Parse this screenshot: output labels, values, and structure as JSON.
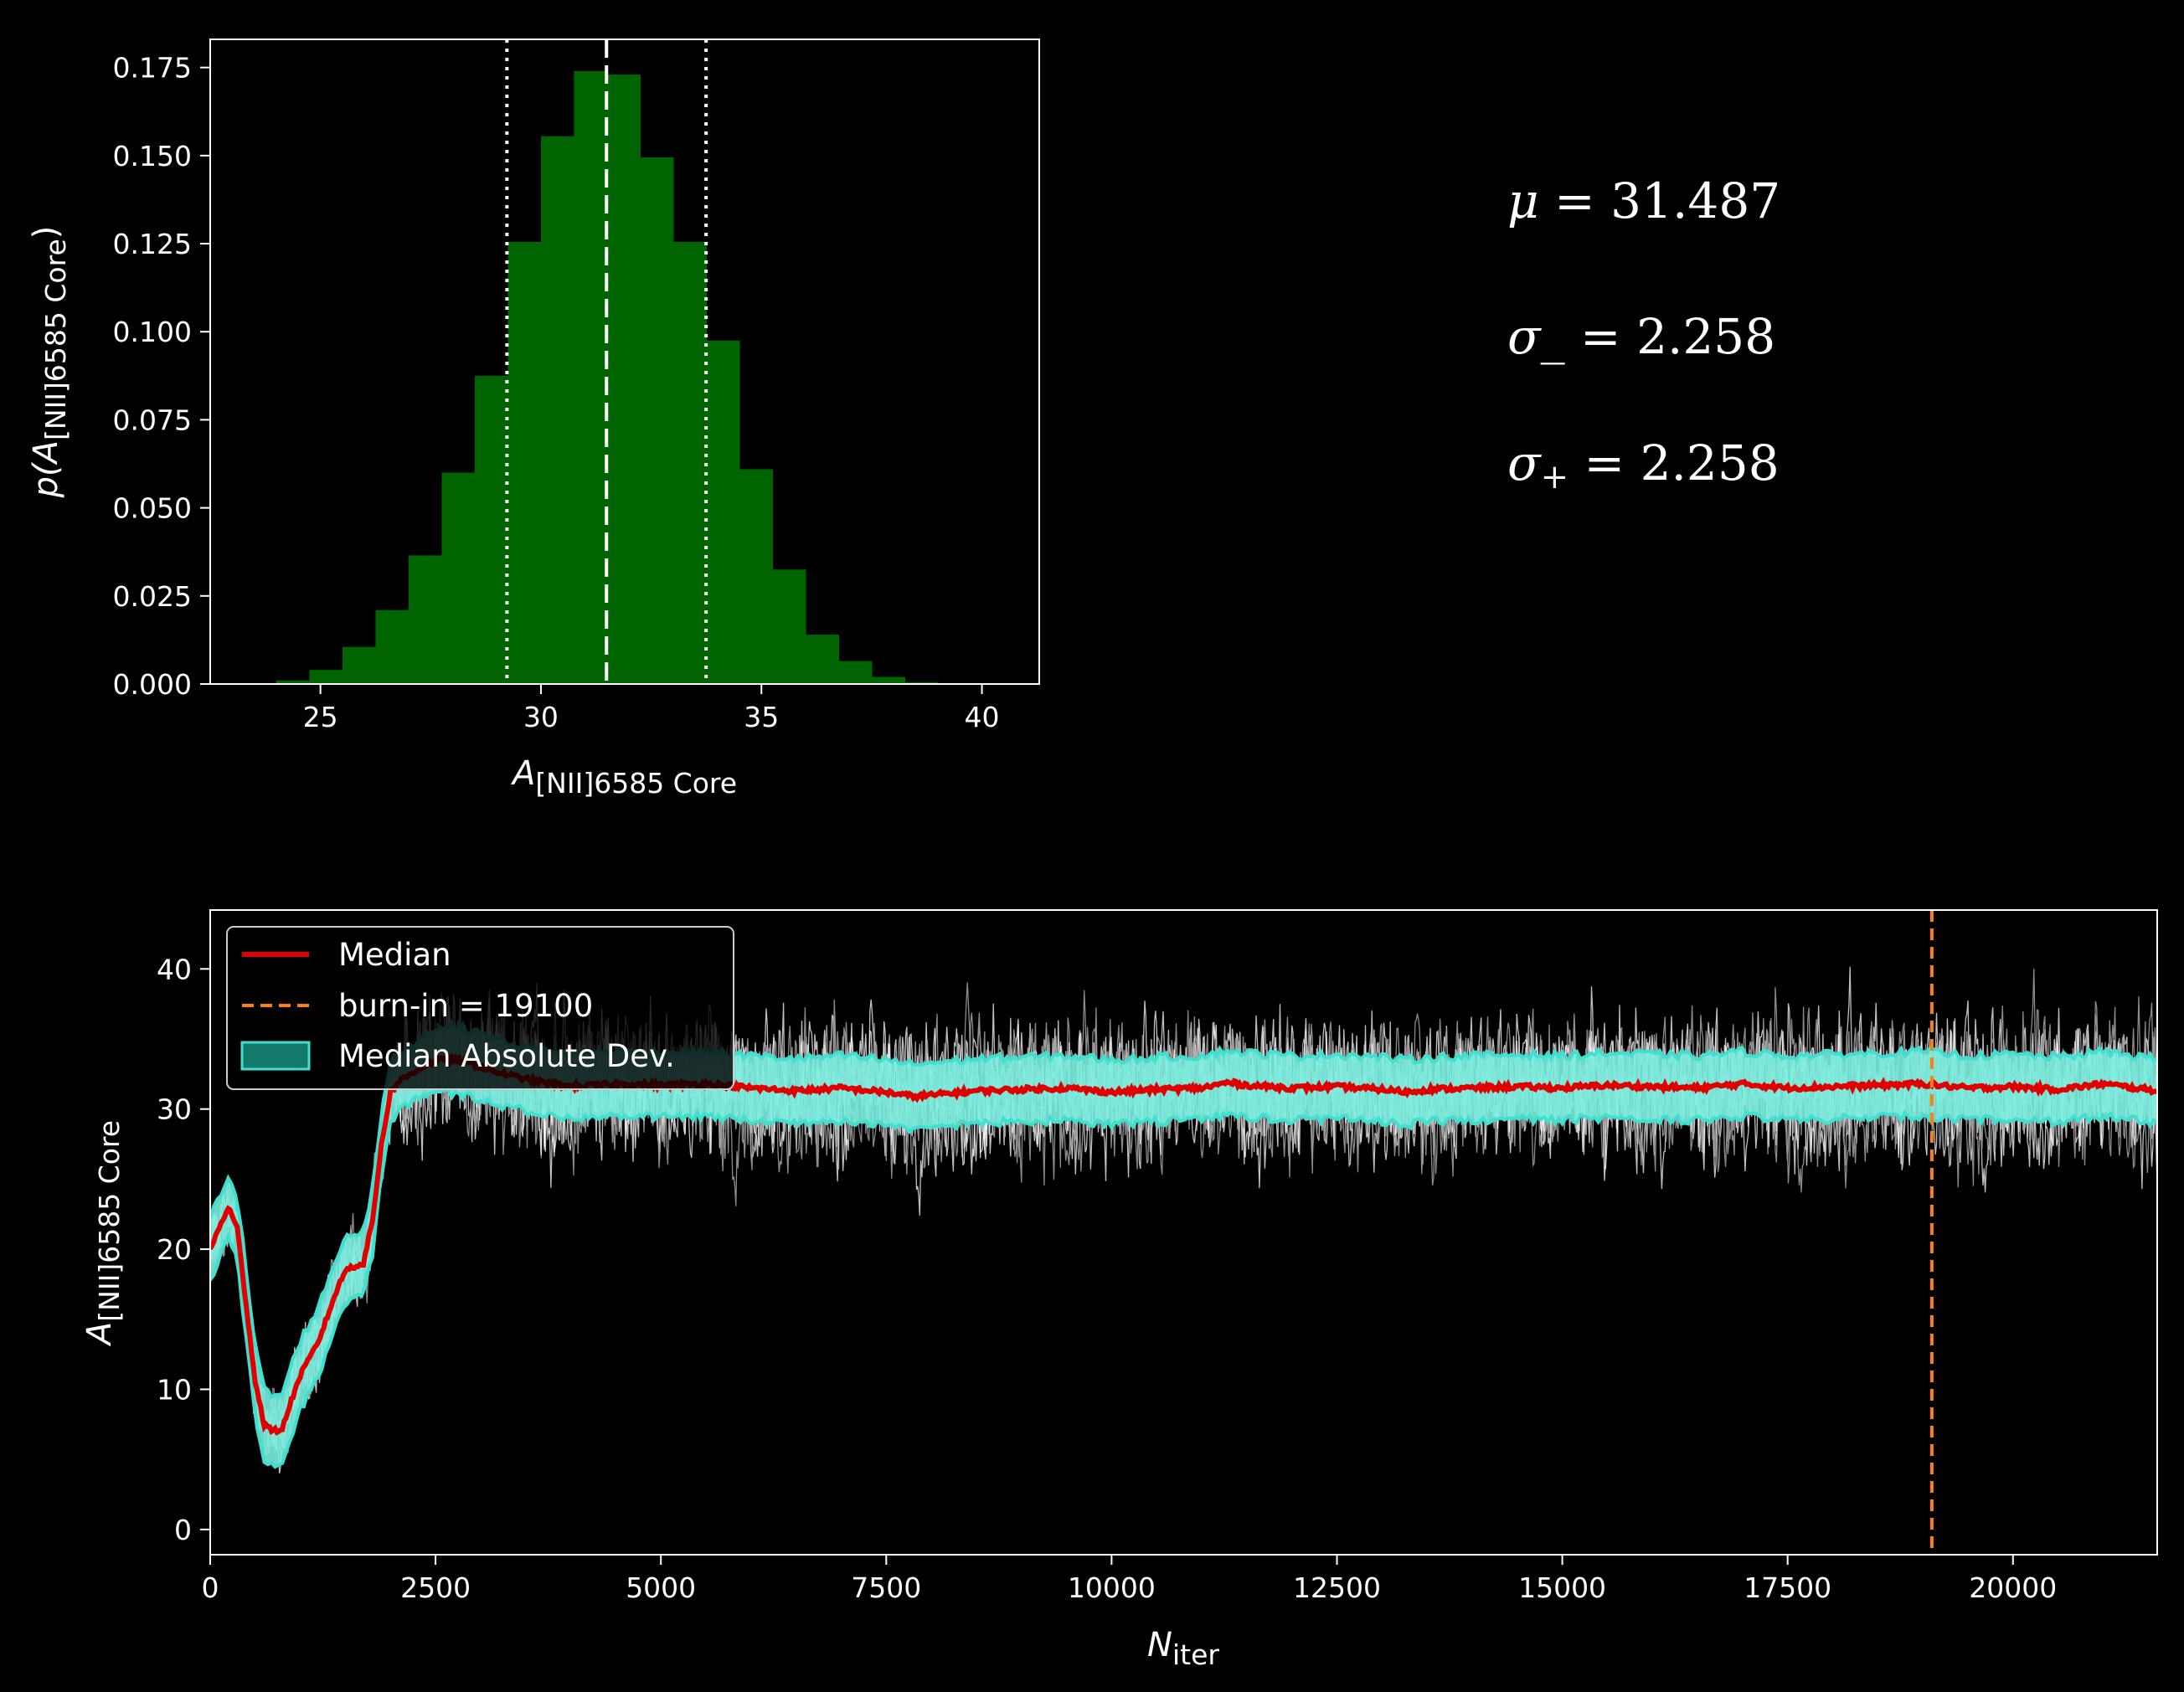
{
  "chart_data": [
    {
      "type": "bar",
      "role": "histogram",
      "xlabel": "A",
      "xlabel_sub": "[NII]6585 Core",
      "ylabel_prefix": "p(",
      "ylabel_main": "A",
      "ylabel_sub": "[NII]6585 Core",
      "ylabel_suffix": ")",
      "xlim": [
        22.5,
        41.3
      ],
      "ylim": [
        0,
        0.183
      ],
      "xticks": [
        25,
        30,
        35,
        40
      ],
      "yticks": [
        0.0,
        0.025,
        0.05,
        0.075,
        0.1,
        0.125,
        0.15,
        0.175
      ],
      "ytick_labels": [
        "0.000",
        "0.025",
        "0.050",
        "0.075",
        "0.100",
        "0.125",
        "0.150",
        "0.175"
      ],
      "bin_edges": [
        24.0,
        24.75,
        25.5,
        26.25,
        27.0,
        27.75,
        28.5,
        29.25,
        30.0,
        30.75,
        31.5,
        32.25,
        33.0,
        33.75,
        34.5,
        35.25,
        36.0,
        36.75,
        37.5,
        38.25,
        39.0,
        39.75
      ],
      "values": [
        0.001,
        0.004,
        0.0105,
        0.021,
        0.0365,
        0.06,
        0.0875,
        0.1255,
        0.1555,
        0.174,
        0.173,
        0.1495,
        0.1255,
        0.0975,
        0.061,
        0.0325,
        0.014,
        0.0065,
        0.002,
        0.0005,
        0.0002
      ],
      "bar_color": "#006400",
      "mean_line": 31.487,
      "sigma_lines": [
        29.229,
        33.745
      ]
    },
    {
      "type": "line",
      "role": "trace",
      "xlabel": "N",
      "xlabel_sub": "iter",
      "ylabel": "A",
      "ylabel_sub": "[NII]6585 Core",
      "xlim": [
        0,
        21600
      ],
      "ylim": [
        -1.8,
        44.2
      ],
      "xticks": [
        0,
        2500,
        5000,
        7500,
        10000,
        12500,
        15000,
        17500,
        20000
      ],
      "yticks": [
        0,
        10,
        20,
        30,
        40
      ],
      "burn_in": 19100,
      "legend_placement": "upper-left",
      "median": {
        "x": [
          0,
          100,
          200,
          300,
          400,
          500,
          600,
          700,
          800,
          900,
          1000,
          1100,
          1200,
          1300,
          1400,
          1500,
          1600,
          1700,
          1800,
          1900,
          2000,
          2100,
          2200,
          2400,
          2600,
          2800,
          3000,
          3200,
          3400,
          3600,
          3800,
          4000,
          4500,
          5000,
          5500,
          6000,
          6500,
          7000,
          7500,
          7800,
          8000,
          8500,
          9000,
          9500,
          10000,
          10500,
          11000,
          11300,
          11500,
          12000,
          12500,
          13000,
          13300,
          13500,
          14000,
          14500,
          15000,
          15500,
          16000,
          16500,
          17000,
          17500,
          18000,
          18500,
          19000,
          19500,
          20000,
          20500,
          21000,
          21600
        ],
        "y": [
          20,
          21.5,
          23,
          21.5,
          16,
          10.5,
          7.5,
          7.0,
          7.2,
          9.2,
          11.0,
          12.2,
          13.4,
          15.2,
          17.0,
          18.5,
          18.8,
          19.0,
          22.0,
          27.5,
          31.2,
          32.0,
          32.4,
          33.2,
          33.6,
          33.4,
          33.0,
          32.6,
          32.3,
          32.0,
          31.8,
          31.6,
          31.8,
          31.7,
          31.8,
          31.5,
          31.3,
          31.5,
          31.2,
          30.9,
          31.0,
          31.3,
          31.4,
          31.5,
          31.2,
          31.4,
          31.5,
          31.9,
          31.7,
          31.5,
          31.6,
          31.4,
          31.2,
          31.4,
          31.5,
          31.6,
          31.5,
          31.7,
          31.6,
          31.5,
          31.8,
          31.5,
          31.6,
          31.7,
          31.8,
          31.5,
          31.6,
          31.4,
          31.8,
          31.3
        ],
        "color": "#e00000"
      },
      "mad_halfwidth": {
        "x": [
          0,
          200,
          400,
          600,
          800,
          1000,
          1400,
          1800,
          2000,
          2100,
          2200,
          2600,
          3000,
          3400,
          3800,
          4500,
          5500,
          7500,
          10000,
          15000,
          19000,
          21600
        ],
        "y": [
          2.2,
          2.3,
          2.4,
          2.5,
          2.5,
          2.5,
          2.4,
          2.3,
          2.1,
          2.0,
          2.05,
          2.4,
          2.4,
          2.3,
          2.3,
          2.3,
          2.3,
          2.3,
          2.3,
          2.3,
          2.3,
          2.3
        ]
      },
      "band_color": "#7aeee0",
      "band_line_color": "#40e0d0",
      "walker_color": "#ffffff",
      "burn_in_color": "#ff7f0e",
      "legend": {
        "median_label": "Median",
        "burn_in_label": "burn-in = 19100",
        "band_label": "Median Absolute Dev."
      }
    }
  ],
  "stats": {
    "mu_symbol": "μ",
    "mu_eq": " = 31.487",
    "sigma_symbol": "σ",
    "sigma_minus_sub": "_",
    "sigma_minus_eq": " = 2.258",
    "sigma_plus_sub": "+",
    "sigma_plus_eq": " = 2.258"
  }
}
